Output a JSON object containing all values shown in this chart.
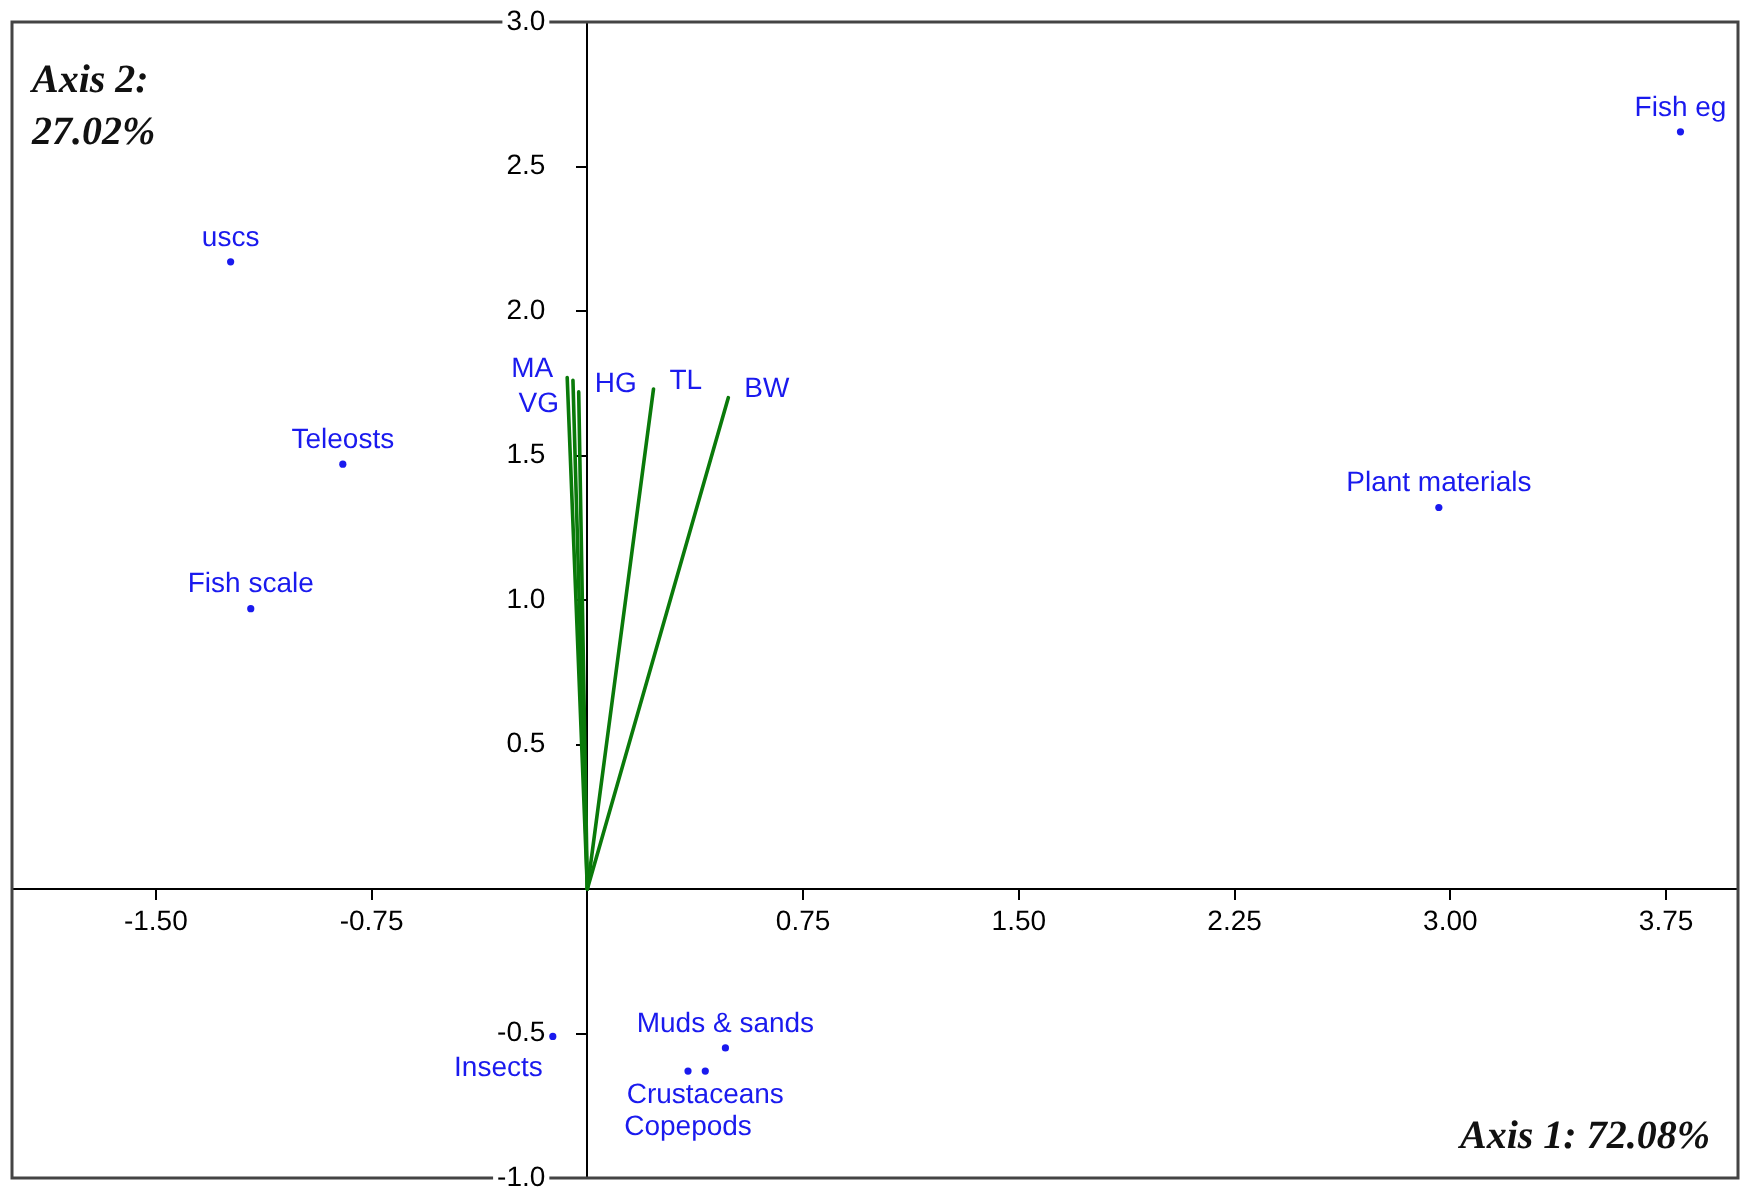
{
  "chart_data": {
    "type": "line",
    "xlabel": "Axis 1: 72.08%",
    "ylabel": "Axis 2: 27.02%",
    "xlim": [
      -2,
      4
    ],
    "ylim": [
      -1,
      3
    ],
    "xticks": [
      {
        "value": -1.5,
        "label": "-1.50"
      },
      {
        "value": -0.75,
        "label": "-0.75"
      },
      {
        "value": 0.75,
        "label": "0.75"
      },
      {
        "value": 1.5,
        "label": "1.50"
      },
      {
        "value": 2.25,
        "label": "2.25"
      },
      {
        "value": 3,
        "label": "3.00"
      },
      {
        "value": 3.75,
        "label": "3.75"
      }
    ],
    "yticks": [
      {
        "value": -1,
        "label": "-1.0"
      },
      {
        "value": -0.5,
        "label": "-0.5"
      },
      {
        "value": 0.5,
        "label": "0.5"
      },
      {
        "value": 1,
        "label": "1.0"
      },
      {
        "value": 1.5,
        "label": "1.5"
      },
      {
        "value": 2,
        "label": "2.0"
      },
      {
        "value": 2.5,
        "label": "2.5"
      },
      {
        "value": 3,
        "label": "3.0"
      }
    ],
    "grid": false,
    "legend": false,
    "line_style": "solid",
    "series": [
      {
        "name": "MA",
        "color": "#0a7a0a",
        "x": [
          0,
          -0.07
        ],
        "values": [
          0,
          1.77
        ]
      },
      {
        "name": "VG",
        "color": "#0a7a0a",
        "x": [
          0,
          -0.05
        ],
        "values": [
          0,
          1.76
        ]
      },
      {
        "name": "HG",
        "color": "#0a7a0a",
        "x": [
          0,
          -0.03
        ],
        "values": [
          0,
          1.72
        ]
      },
      {
        "name": "TL",
        "color": "#0a7a0a",
        "x": [
          0,
          0.23
        ],
        "values": [
          0,
          1.73
        ]
      },
      {
        "name": "BW",
        "color": "#0a7a0a",
        "x": [
          0,
          0.49
        ],
        "values": [
          0,
          1.7
        ]
      },
      {
        "type": "scatter",
        "marker": "circle",
        "color": "#1a1aee",
        "x": [
          -1.24,
          -0.85,
          -1.17,
          2.96,
          3.8,
          -0.12,
          0.48,
          0.41,
          0.35
        ],
        "values": [
          2.17,
          1.47,
          0.97,
          1.32,
          2.62,
          -0.51,
          -0.55,
          -0.63,
          -0.63
        ],
        "value_labels": [
          "uscs",
          "Teleosts",
          "Fish scale",
          "Plant materials",
          "Fish eg",
          "Insects",
          "Muds & sands",
          "Crustaceans",
          "Copepods"
        ]
      }
    ]
  }
}
